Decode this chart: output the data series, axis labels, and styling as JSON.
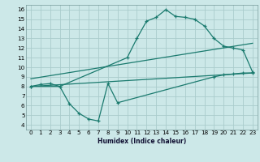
{
  "title": "",
  "xlabel": "Humidex (Indice chaleur)",
  "bg_color": "#cce8e8",
  "grid_color": "#aacccc",
  "line_color": "#1a7a6e",
  "xlim": [
    -0.5,
    23.5
  ],
  "ylim": [
    3.5,
    16.5
  ],
  "xticks": [
    0,
    1,
    2,
    3,
    4,
    5,
    6,
    7,
    8,
    9,
    10,
    11,
    12,
    13,
    14,
    15,
    16,
    17,
    18,
    19,
    20,
    21,
    22,
    23
  ],
  "yticks": [
    4,
    5,
    6,
    7,
    8,
    9,
    10,
    11,
    12,
    13,
    14,
    15,
    16
  ],
  "curve1_x": [
    0,
    1,
    2,
    3,
    10,
    11,
    12,
    13,
    14,
    15,
    16,
    17,
    18,
    19,
    20,
    21,
    22,
    23
  ],
  "curve1_y": [
    8.0,
    8.2,
    8.3,
    8.0,
    11.0,
    13.0,
    14.8,
    15.2,
    16.0,
    15.3,
    15.2,
    15.0,
    14.3,
    13.0,
    12.2,
    12.0,
    11.8,
    9.5
  ],
  "curve2_x": [
    0,
    3,
    4,
    5,
    6,
    7,
    8,
    9,
    19,
    20,
    21,
    22,
    23
  ],
  "curve2_y": [
    8.0,
    8.0,
    6.2,
    5.2,
    4.6,
    4.4,
    8.3,
    6.3,
    9.0,
    9.2,
    9.3,
    9.4,
    9.4
  ],
  "line3_x": [
    0,
    23
  ],
  "line3_y": [
    8.0,
    9.4
  ],
  "line4_x": [
    0,
    23
  ],
  "line4_y": [
    8.8,
    12.5
  ]
}
